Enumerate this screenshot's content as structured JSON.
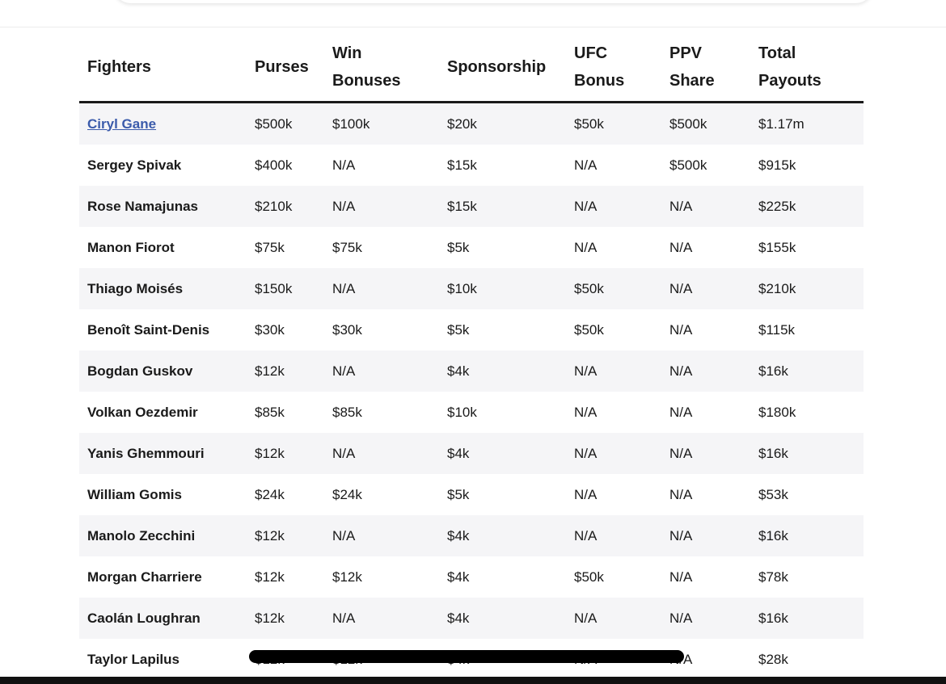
{
  "table": {
    "headers": {
      "fighters": "Fighters",
      "purses": "Purses",
      "win_bonuses_1": "Win",
      "win_bonuses_2": "Bonuses",
      "sponsorship": "Sponsorship",
      "ufc_bonus_1": "UFC",
      "ufc_bonus_2": "Bonus",
      "ppv_share_1": "PPV",
      "ppv_share_2": "Share",
      "total_payouts_1": "Total",
      "total_payouts_2": "Payouts"
    },
    "rows": [
      {
        "fighter": "Ciryl Gane",
        "purse": "$500k",
        "win_bonus": "$100k",
        "sponsorship": "$20k",
        "ufc_bonus": "$50k",
        "ppv_share": "$500k",
        "total": "$1.17m"
      },
      {
        "fighter": "Sergey Spivak",
        "purse": "$400k",
        "win_bonus": "N/A",
        "sponsorship": "$15k",
        "ufc_bonus": "N/A",
        "ppv_share": "$500k",
        "total": "$915k"
      },
      {
        "fighter": "Rose Namajunas",
        "purse": "$210k",
        "win_bonus": "N/A",
        "sponsorship": "$15k",
        "ufc_bonus": "N/A",
        "ppv_share": "N/A",
        "total": "$225k"
      },
      {
        "fighter": "Manon Fiorot",
        "purse": "$75k",
        "win_bonus": "$75k",
        "sponsorship": "$5k",
        "ufc_bonus": "N/A",
        "ppv_share": "N/A",
        "total": "$155k"
      },
      {
        "fighter": "Thiago Moisés",
        "purse": "$150k",
        "win_bonus": "N/A",
        "sponsorship": "$10k",
        "ufc_bonus": "$50k",
        "ppv_share": "N/A",
        "total": "$210k"
      },
      {
        "fighter": "Benoît Saint-Denis",
        "purse": "$30k",
        "win_bonus": "$30k",
        "sponsorship": "$5k",
        "ufc_bonus": "$50k",
        "ppv_share": "N/A",
        "total": "$115k"
      },
      {
        "fighter": "Bogdan Guskov",
        "purse": "$12k",
        "win_bonus": "N/A",
        "sponsorship": "$4k",
        "ufc_bonus": "N/A",
        "ppv_share": "N/A",
        "total": "$16k"
      },
      {
        "fighter": "Volkan Oezdemir",
        "purse": "$85k",
        "win_bonus": "$85k",
        "sponsorship": "$10k",
        "ufc_bonus": "N/A",
        "ppv_share": "N/A",
        "total": "$180k"
      },
      {
        "fighter": "Yanis Ghemmouri",
        "purse": "$12k",
        "win_bonus": "N/A",
        "sponsorship": "$4k",
        "ufc_bonus": "N/A",
        "ppv_share": "N/A",
        "total": "$16k"
      },
      {
        "fighter": "William Gomis",
        "purse": "$24k",
        "win_bonus": "$24k",
        "sponsorship": "$5k",
        "ufc_bonus": "N/A",
        "ppv_share": "N/A",
        "total": "$53k"
      },
      {
        "fighter": "Manolo Zecchini",
        "purse": "$12k",
        "win_bonus": "N/A",
        "sponsorship": "$4k",
        "ufc_bonus": "N/A",
        "ppv_share": "N/A",
        "total": "$16k"
      },
      {
        "fighter": "Morgan Charriere",
        "purse": "$12k",
        "win_bonus": "$12k",
        "sponsorship": "$4k",
        "ufc_bonus": "$50k",
        "ppv_share": "N/A",
        "total": "$78k"
      },
      {
        "fighter": "Caolán Loughran",
        "purse": "$12k",
        "win_bonus": "N/A",
        "sponsorship": "$4k",
        "ufc_bonus": "N/A",
        "ppv_share": "N/A",
        "total": "$16k"
      },
      {
        "fighter": "Taylor Lapilus",
        "purse": "$12k",
        "win_bonus": "$12k",
        "sponsorship": "$4k",
        "ufc_bonus": "N/A",
        "ppv_share": "N/A",
        "total": "$28k"
      }
    ]
  },
  "colors": {
    "link": "#3b5bab",
    "row_shade": "#f5f5f7",
    "header_rule": "#1a1a1a",
    "redaction": "#000000"
  }
}
